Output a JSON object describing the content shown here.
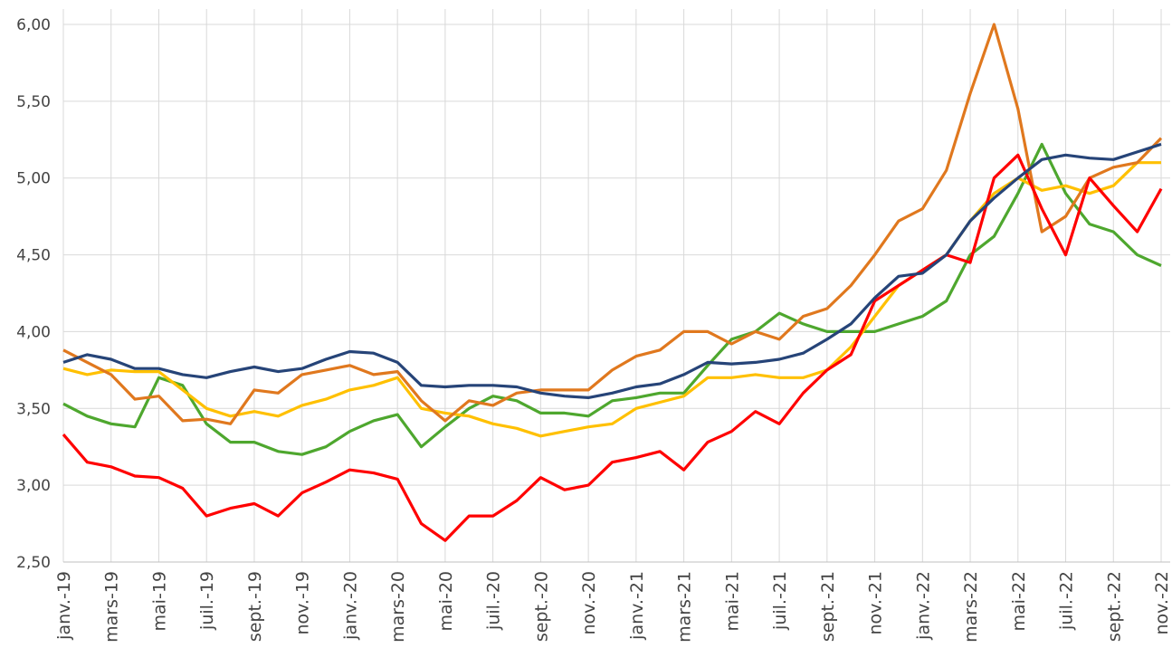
{
  "chart_data": {
    "type": "line",
    "x": [
      0,
      1,
      2,
      3,
      4,
      5,
      6,
      7,
      8,
      9,
      10,
      11,
      12,
      13,
      14,
      15,
      16,
      17,
      18,
      19,
      20,
      21,
      22,
      23,
      24,
      25,
      26,
      27,
      28,
      29,
      30,
      31,
      32,
      33,
      34,
      35,
      36,
      37,
      38,
      39,
      40,
      41,
      42,
      43,
      44,
      45,
      46
    ],
    "series": [
      {
        "color": "#4ea72e",
        "values": [
          3.53,
          3.45,
          3.4,
          3.38,
          3.7,
          3.65,
          3.4,
          3.28,
          3.28,
          3.22,
          3.2,
          3.25,
          3.35,
          3.42,
          3.46,
          3.25,
          3.38,
          3.5,
          3.58,
          3.55,
          3.47,
          3.47,
          3.45,
          3.55,
          3.57,
          3.6,
          3.6,
          3.78,
          3.95,
          4.0,
          4.12,
          4.05,
          4.0,
          4.0,
          4.0,
          4.05,
          4.1,
          4.2,
          4.5,
          4.62,
          4.9,
          5.22,
          4.9,
          4.7,
          4.65,
          4.5,
          4.43
        ]
      },
      {
        "color": "#ffc000",
        "values": [
          3.76,
          3.72,
          3.75,
          3.74,
          3.74,
          3.62,
          3.5,
          3.45,
          3.48,
          3.45,
          3.52,
          3.56,
          3.62,
          3.65,
          3.7,
          3.5,
          3.47,
          3.45,
          3.4,
          3.37,
          3.32,
          3.35,
          3.38,
          3.4,
          3.5,
          3.54,
          3.58,
          3.7,
          3.7,
          3.72,
          3.7,
          3.7,
          3.75,
          3.9,
          4.1,
          4.3,
          4.4,
          4.5,
          4.72,
          4.9,
          5.0,
          4.92,
          4.95,
          4.9,
          4.95,
          5.1,
          5.1
        ]
      },
      {
        "color": "#e0781e",
        "values": [
          3.88,
          3.8,
          3.72,
          3.56,
          3.58,
          3.42,
          3.43,
          3.4,
          3.62,
          3.6,
          3.72,
          3.75,
          3.78,
          3.72,
          3.74,
          3.55,
          3.42,
          3.55,
          3.52,
          3.6,
          3.62,
          3.62,
          3.62,
          3.75,
          3.84,
          3.88,
          4.0,
          4.0,
          3.92,
          4.0,
          3.95,
          4.1,
          4.15,
          4.3,
          4.5,
          4.72,
          4.8,
          5.05,
          5.55,
          6.0,
          5.45,
          4.65,
          4.75,
          5.0,
          5.07,
          5.1,
          5.26
        ]
      },
      {
        "color": "#ff0000",
        "values": [
          3.33,
          3.15,
          3.12,
          3.06,
          3.05,
          2.98,
          2.8,
          2.85,
          2.88,
          2.8,
          2.95,
          3.02,
          3.1,
          3.08,
          3.04,
          2.75,
          2.64,
          2.8,
          2.8,
          2.9,
          3.05,
          2.97,
          3.0,
          3.15,
          3.18,
          3.22,
          3.1,
          3.28,
          3.35,
          3.48,
          3.4,
          3.6,
          3.75,
          3.85,
          4.2,
          4.3,
          4.4,
          4.5,
          4.45,
          5.0,
          5.15,
          4.8,
          4.5,
          5.0,
          4.82,
          4.65,
          4.93
        ]
      },
      {
        "color": "#264478",
        "values": [
          3.8,
          3.85,
          3.82,
          3.76,
          3.76,
          3.72,
          3.7,
          3.74,
          3.77,
          3.74,
          3.76,
          3.82,
          3.87,
          3.86,
          3.8,
          3.65,
          3.64,
          3.65,
          3.65,
          3.64,
          3.6,
          3.58,
          3.57,
          3.6,
          3.64,
          3.66,
          3.72,
          3.8,
          3.79,
          3.8,
          3.82,
          3.86,
          3.95,
          4.05,
          4.22,
          4.36,
          4.38,
          4.5,
          4.72,
          4.87,
          5.0,
          5.12,
          5.15,
          5.13,
          5.12,
          5.17,
          5.22
        ]
      }
    ],
    "xlim": [
      0,
      46
    ],
    "xticks": [
      {
        "value": 0,
        "label": "janv.-19"
      },
      {
        "value": 2,
        "label": "mars-19"
      },
      {
        "value": 4,
        "label": "mai-19"
      },
      {
        "value": 6,
        "label": "juil.-19"
      },
      {
        "value": 8,
        "label": "sept.-19"
      },
      {
        "value": 10,
        "label": "nov.-19"
      },
      {
        "value": 12,
        "label": "janv.-20"
      },
      {
        "value": 14,
        "label": "mars-20"
      },
      {
        "value": 16,
        "label": "mai-20"
      },
      {
        "value": 18,
        "label": "juil.-20"
      },
      {
        "value": 20,
        "label": "sept.-20"
      },
      {
        "value": 22,
        "label": "nov.-20"
      },
      {
        "value": 24,
        "label": "janv.-21"
      },
      {
        "value": 26,
        "label": "mars-21"
      },
      {
        "value": 28,
        "label": "mai-21"
      },
      {
        "value": 30,
        "label": "juil.-21"
      },
      {
        "value": 32,
        "label": "sept.-21"
      },
      {
        "value": 34,
        "label": "nov.-21"
      },
      {
        "value": 36,
        "label": "janv.-22"
      },
      {
        "value": 38,
        "label": "mars-22"
      },
      {
        "value": 40,
        "label": "mai-22"
      },
      {
        "value": 42,
        "label": "juil.-22"
      },
      {
        "value": 44,
        "label": "sept.-22"
      },
      {
        "value": 46,
        "label": "nov.-22"
      }
    ],
    "ylim": [
      2.5,
      6.0
    ],
    "yticks": [
      {
        "value": 2.5,
        "label": "2,50"
      },
      {
        "value": 3.0,
        "label": "3,00"
      },
      {
        "value": 3.5,
        "label": "3,50"
      },
      {
        "value": 4.0,
        "label": "4,00"
      },
      {
        "value": 4.5,
        "label": "4,50"
      },
      {
        "value": 5.0,
        "label": "5,00"
      },
      {
        "value": 5.5,
        "label": "5,50"
      },
      {
        "value": 6.0,
        "label": "6,00"
      }
    ],
    "grid": true
  }
}
